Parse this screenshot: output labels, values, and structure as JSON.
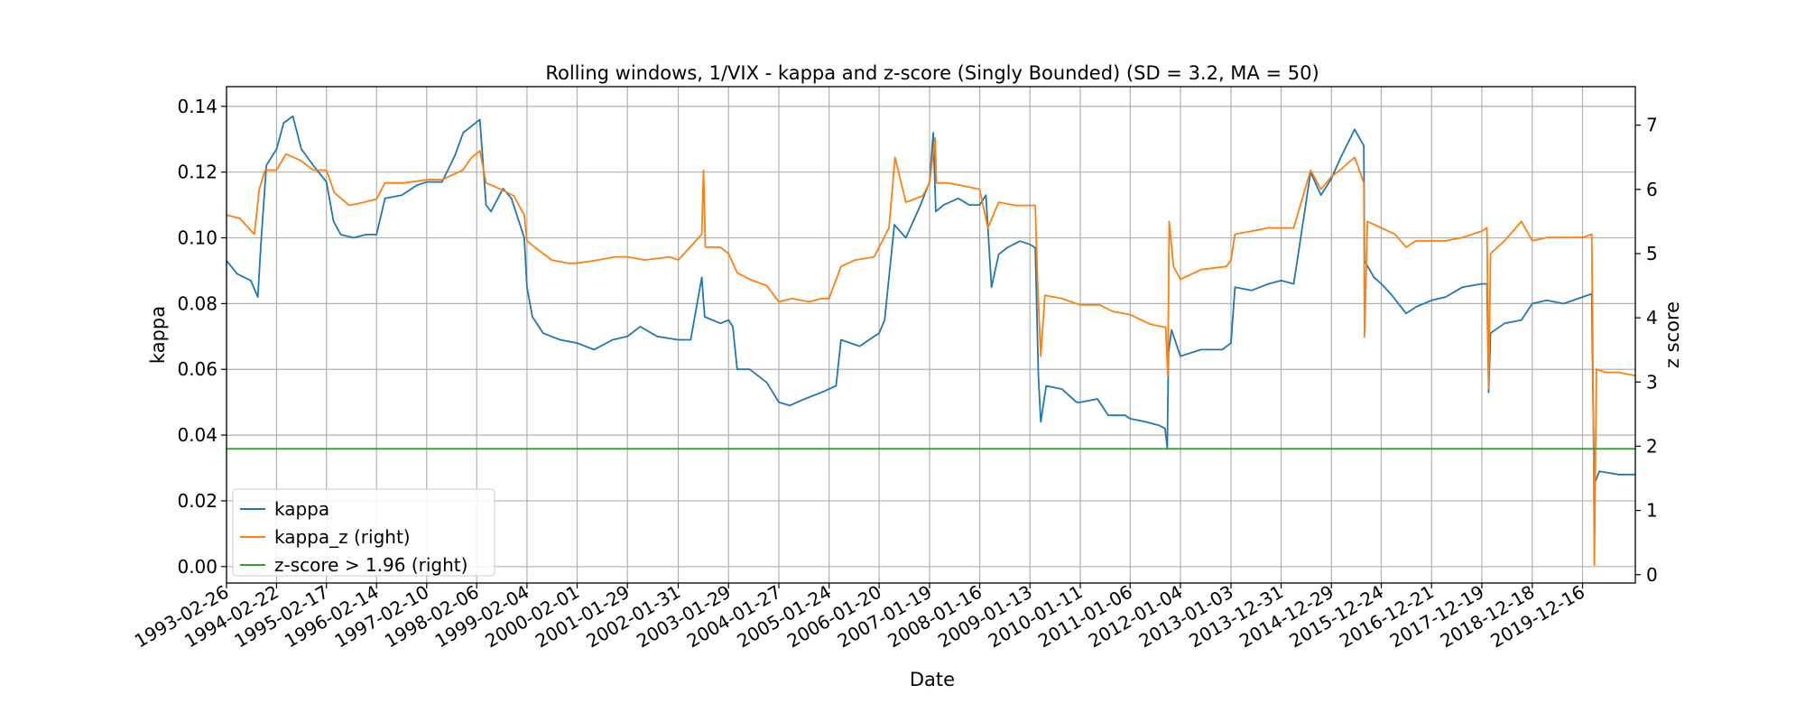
{
  "chart_data": {
    "type": "line",
    "title": "Rolling windows, 1/VIX - kappa and z-score (Singly Bounded) (SD = 3.2, MA = 50)",
    "xlabel": "Date",
    "ylabel": "kappa",
    "y2label": "z score",
    "ylim": [
      -0.005,
      0.146
    ],
    "y2lim": [
      -0.13,
      7.6
    ],
    "yticks": [
      "0.00",
      "0.02",
      "0.04",
      "0.06",
      "0.08",
      "0.10",
      "0.12",
      "0.14"
    ],
    "y2ticks": [
      "0",
      "1",
      "2",
      "3",
      "4",
      "5",
      "6",
      "7"
    ],
    "xlim": [
      "1993-02-26",
      "2020-12-31"
    ],
    "xticks": [
      "1993-02-26",
      "1994-02-22",
      "1995-02-17",
      "1996-02-14",
      "1997-02-10",
      "1998-02-06",
      "1999-02-04",
      "2000-02-01",
      "2001-01-29",
      "2002-01-31",
      "2003-01-29",
      "2004-01-27",
      "2005-01-24",
      "2006-01-20",
      "2007-01-19",
      "2008-01-16",
      "2009-01-13",
      "2010-01-11",
      "2011-01-06",
      "2012-01-04",
      "2013-01-03",
      "2013-12-31",
      "2014-12-29",
      "2015-12-24",
      "2016-12-21",
      "2017-12-19",
      "2018-12-18",
      "2019-12-16"
    ],
    "grid": true,
    "legend_position": "lower-left",
    "legend": [
      "kappa",
      "kappa_z (right)",
      "z-score > 1.96 (right)"
    ],
    "series": [
      {
        "name": "kappa",
        "axis": "left",
        "color": "#1f77b4",
        "points": [
          [
            "1993-02-26",
            0.093
          ],
          [
            "1993-05-15",
            0.089
          ],
          [
            "1993-08-20",
            0.087
          ],
          [
            "1993-10-10",
            0.082
          ],
          [
            "1993-11-01",
            0.098
          ],
          [
            "1993-12-10",
            0.122
          ],
          [
            "1994-02-22",
            0.127
          ],
          [
            "1994-04-15",
            0.135
          ],
          [
            "1994-06-20",
            0.137
          ],
          [
            "1994-08-20",
            0.127
          ],
          [
            "1994-11-15",
            0.122
          ],
          [
            "1995-02-17",
            0.117
          ],
          [
            "1995-04-10",
            0.105
          ],
          [
            "1995-06-01",
            0.101
          ],
          [
            "1995-09-01",
            0.1
          ],
          [
            "1995-12-01",
            0.101
          ],
          [
            "1996-02-14",
            0.101
          ],
          [
            "1996-04-15",
            0.112
          ],
          [
            "1996-08-15",
            0.113
          ],
          [
            "1996-12-01",
            0.116
          ],
          [
            "1997-02-10",
            0.117
          ],
          [
            "1997-06-01",
            0.117
          ],
          [
            "1997-09-01",
            0.125
          ],
          [
            "1997-11-01",
            0.132
          ],
          [
            "1998-01-01",
            0.134
          ],
          [
            "1998-03-01",
            0.136
          ],
          [
            "1998-04-15",
            0.11
          ],
          [
            "1998-05-20",
            0.108
          ],
          [
            "1998-08-15",
            0.115
          ],
          [
            "1998-10-15",
            0.112
          ],
          [
            "1999-01-15",
            0.1
          ],
          [
            "1999-02-04",
            0.085
          ],
          [
            "1999-03-15",
            0.076
          ],
          [
            "1999-06-01",
            0.071
          ],
          [
            "1999-10-01",
            0.069
          ],
          [
            "2000-02-01",
            0.068
          ],
          [
            "2000-06-01",
            0.066
          ],
          [
            "2000-10-15",
            0.069
          ],
          [
            "2001-01-29",
            0.07
          ],
          [
            "2001-05-01",
            0.073
          ],
          [
            "2001-09-01",
            0.07
          ],
          [
            "2002-01-31",
            0.069
          ],
          [
            "2002-05-01",
            0.069
          ],
          [
            "2002-07-20",
            0.088
          ],
          [
            "2002-08-10",
            0.076
          ],
          [
            "2002-12-01",
            0.074
          ],
          [
            "2003-01-29",
            0.075
          ],
          [
            "2003-03-01",
            0.073
          ],
          [
            "2003-04-01",
            0.06
          ],
          [
            "2003-07-01",
            0.06
          ],
          [
            "2003-11-01",
            0.056
          ],
          [
            "2004-01-27",
            0.05
          ],
          [
            "2004-04-15",
            0.049
          ],
          [
            "2004-08-01",
            0.051
          ],
          [
            "2004-12-01",
            0.053
          ],
          [
            "2005-01-24",
            0.054
          ],
          [
            "2005-03-15",
            0.055
          ],
          [
            "2005-04-20",
            0.069
          ],
          [
            "2005-09-01",
            0.067
          ],
          [
            "2005-12-15",
            0.07
          ],
          [
            "2006-01-20",
            0.071
          ],
          [
            "2006-03-01",
            0.075
          ],
          [
            "2006-05-10",
            0.104
          ],
          [
            "2006-08-01",
            0.1
          ],
          [
            "2006-11-15",
            0.11
          ],
          [
            "2007-01-19",
            0.117
          ],
          [
            "2007-02-15",
            0.132
          ],
          [
            "2007-03-05",
            0.108
          ],
          [
            "2007-05-01",
            0.11
          ],
          [
            "2007-08-15",
            0.112
          ],
          [
            "2007-11-01",
            0.11
          ],
          [
            "2008-01-16",
            0.11
          ],
          [
            "2008-03-01",
            0.113
          ],
          [
            "2008-04-10",
            0.085
          ],
          [
            "2008-06-01",
            0.095
          ],
          [
            "2008-08-01",
            0.097
          ],
          [
            "2008-11-01",
            0.099
          ],
          [
            "2009-01-13",
            0.098
          ],
          [
            "2009-02-20",
            0.097
          ],
          [
            "2009-03-15",
            0.058
          ],
          [
            "2009-04-01",
            0.044
          ],
          [
            "2009-05-10",
            0.055
          ],
          [
            "2009-09-01",
            0.054
          ],
          [
            "2009-12-15",
            0.05
          ],
          [
            "2010-01-11",
            0.05
          ],
          [
            "2010-05-15",
            0.051
          ],
          [
            "2010-08-01",
            0.046
          ],
          [
            "2010-12-01",
            0.046
          ],
          [
            "2011-01-06",
            0.045
          ],
          [
            "2011-05-01",
            0.044
          ],
          [
            "2011-08-01",
            0.043
          ],
          [
            "2011-09-15",
            0.042
          ],
          [
            "2011-10-01",
            0.036
          ],
          [
            "2011-10-10",
            0.065
          ],
          [
            "2011-11-01",
            0.072
          ],
          [
            "2012-01-04",
            0.064
          ],
          [
            "2012-06-01",
            0.066
          ],
          [
            "2012-11-01",
            0.066
          ],
          [
            "2013-01-03",
            0.068
          ],
          [
            "2013-02-01",
            0.085
          ],
          [
            "2013-06-01",
            0.084
          ],
          [
            "2013-10-01",
            0.086
          ],
          [
            "2013-12-31",
            0.087
          ],
          [
            "2014-04-01",
            0.086
          ],
          [
            "2014-08-01",
            0.12
          ],
          [
            "2014-10-15",
            0.113
          ],
          [
            "2014-12-29",
            0.118
          ],
          [
            "2015-03-01",
            0.124
          ],
          [
            "2015-06-15",
            0.133
          ],
          [
            "2015-08-20",
            0.128
          ],
          [
            "2015-08-25",
            0.093
          ],
          [
            "2015-11-01",
            0.088
          ],
          [
            "2015-12-24",
            0.086
          ],
          [
            "2016-03-01",
            0.083
          ],
          [
            "2016-06-20",
            0.077
          ],
          [
            "2016-09-01",
            0.079
          ],
          [
            "2016-12-21",
            0.081
          ],
          [
            "2017-04-01",
            0.082
          ],
          [
            "2017-08-01",
            0.085
          ],
          [
            "2017-12-19",
            0.086
          ],
          [
            "2018-01-25",
            0.086
          ],
          [
            "2018-02-06",
            0.053
          ],
          [
            "2018-02-20",
            0.071
          ],
          [
            "2018-06-01",
            0.074
          ],
          [
            "2018-10-01",
            0.075
          ],
          [
            "2018-12-18",
            0.08
          ],
          [
            "2019-04-01",
            0.081
          ],
          [
            "2019-08-01",
            0.08
          ],
          [
            "2019-12-16",
            0.082
          ],
          [
            "2020-02-20",
            0.083
          ],
          [
            "2020-02-28",
            0.056
          ],
          [
            "2020-03-10",
            0.025
          ],
          [
            "2020-04-15",
            0.029
          ],
          [
            "2020-09-01",
            0.028
          ],
          [
            "2020-12-31",
            0.028
          ]
        ]
      },
      {
        "name": "kappa_z (right)",
        "axis": "right",
        "color": "#ff7f0e",
        "points": [
          [
            "1993-02-26",
            5.6
          ],
          [
            "1993-06-01",
            5.55
          ],
          [
            "1993-09-15",
            5.3
          ],
          [
            "1993-10-20",
            6.0
          ],
          [
            "1993-12-01",
            6.3
          ],
          [
            "1994-02-22",
            6.3
          ],
          [
            "1994-05-01",
            6.55
          ],
          [
            "1994-08-15",
            6.45
          ],
          [
            "1994-11-15",
            6.3
          ],
          [
            "1995-02-17",
            6.3
          ],
          [
            "1995-04-15",
            5.95
          ],
          [
            "1995-08-01",
            5.75
          ],
          [
            "1995-11-15",
            5.8
          ],
          [
            "1996-02-14",
            5.85
          ],
          [
            "1996-04-15",
            6.1
          ],
          [
            "1996-09-01",
            6.1
          ],
          [
            "1997-02-10",
            6.15
          ],
          [
            "1997-06-01",
            6.15
          ],
          [
            "1997-10-28",
            6.3
          ],
          [
            "1998-01-01",
            6.5
          ],
          [
            "1998-03-01",
            6.6
          ],
          [
            "1998-04-15",
            6.1
          ],
          [
            "1998-08-01",
            6.0
          ],
          [
            "1998-11-01",
            5.9
          ],
          [
            "1999-01-15",
            5.6
          ],
          [
            "1999-02-04",
            5.2
          ],
          [
            "1999-04-01",
            5.1
          ],
          [
            "1999-08-01",
            4.9
          ],
          [
            "1999-12-01",
            4.85
          ],
          [
            "2000-02-01",
            4.85
          ],
          [
            "2000-07-01",
            4.9
          ],
          [
            "2000-11-01",
            4.95
          ],
          [
            "2001-01-29",
            4.95
          ],
          [
            "2001-06-01",
            4.9
          ],
          [
            "2001-12-01",
            4.95
          ],
          [
            "2002-01-31",
            4.9
          ],
          [
            "2002-07-20",
            5.3
          ],
          [
            "2002-08-01",
            6.3
          ],
          [
            "2002-08-15",
            5.1
          ],
          [
            "2002-12-01",
            5.1
          ],
          [
            "2003-01-29",
            5.0
          ],
          [
            "2003-04-01",
            4.7
          ],
          [
            "2003-07-01",
            4.6
          ],
          [
            "2003-11-01",
            4.5
          ],
          [
            "2004-01-27",
            4.25
          ],
          [
            "2004-05-01",
            4.3
          ],
          [
            "2004-09-01",
            4.25
          ],
          [
            "2004-12-01",
            4.3
          ],
          [
            "2005-01-24",
            4.3
          ],
          [
            "2005-04-20",
            4.8
          ],
          [
            "2005-08-01",
            4.9
          ],
          [
            "2005-12-15",
            4.95
          ],
          [
            "2006-01-20",
            5.1
          ],
          [
            "2006-04-01",
            5.4
          ],
          [
            "2006-05-15",
            6.5
          ],
          [
            "2006-08-01",
            5.8
          ],
          [
            "2006-12-01",
            5.9
          ],
          [
            "2007-01-19",
            6.1
          ],
          [
            "2007-02-28",
            6.8
          ],
          [
            "2007-03-10",
            6.1
          ],
          [
            "2007-06-01",
            6.1
          ],
          [
            "2007-10-01",
            6.05
          ],
          [
            "2008-01-16",
            6.0
          ],
          [
            "2008-03-15",
            5.4
          ],
          [
            "2008-06-01",
            5.8
          ],
          [
            "2008-10-01",
            5.75
          ],
          [
            "2009-01-13",
            5.75
          ],
          [
            "2009-02-20",
            5.75
          ],
          [
            "2009-03-10",
            4.5
          ],
          [
            "2009-04-01",
            3.4
          ],
          [
            "2009-05-01",
            4.35
          ],
          [
            "2009-09-01",
            4.3
          ],
          [
            "2010-01-11",
            4.2
          ],
          [
            "2010-06-01",
            4.2
          ],
          [
            "2010-09-01",
            4.1
          ],
          [
            "2011-01-06",
            4.05
          ],
          [
            "2011-06-01",
            3.9
          ],
          [
            "2011-09-20",
            3.85
          ],
          [
            "2011-10-05",
            3.1
          ],
          [
            "2011-10-15",
            5.5
          ],
          [
            "2011-11-15",
            4.8
          ],
          [
            "2012-01-04",
            4.6
          ],
          [
            "2012-06-01",
            4.75
          ],
          [
            "2012-12-01",
            4.8
          ],
          [
            "2013-01-03",
            4.9
          ],
          [
            "2013-02-01",
            5.3
          ],
          [
            "2013-06-01",
            5.35
          ],
          [
            "2013-10-01",
            5.4
          ],
          [
            "2013-12-31",
            5.4
          ],
          [
            "2014-04-01",
            5.4
          ],
          [
            "2014-08-01",
            6.3
          ],
          [
            "2014-10-15",
            6.0
          ],
          [
            "2014-12-29",
            6.2
          ],
          [
            "2015-03-01",
            6.3
          ],
          [
            "2015-06-15",
            6.5
          ],
          [
            "2015-08-20",
            6.1
          ],
          [
            "2015-08-25",
            3.7
          ],
          [
            "2015-09-15",
            5.5
          ],
          [
            "2015-12-24",
            5.4
          ],
          [
            "2016-04-01",
            5.3
          ],
          [
            "2016-06-20",
            5.1
          ],
          [
            "2016-09-01",
            5.2
          ],
          [
            "2016-12-21",
            5.2
          ],
          [
            "2017-04-01",
            5.2
          ],
          [
            "2017-08-01",
            5.25
          ],
          [
            "2017-12-19",
            5.35
          ],
          [
            "2018-01-25",
            5.4
          ],
          [
            "2018-02-06",
            2.9
          ],
          [
            "2018-02-20",
            5.0
          ],
          [
            "2018-06-01",
            5.2
          ],
          [
            "2018-10-01",
            5.5
          ],
          [
            "2018-12-18",
            5.2
          ],
          [
            "2019-04-01",
            5.25
          ],
          [
            "2019-08-01",
            5.25
          ],
          [
            "2019-12-16",
            5.25
          ],
          [
            "2020-02-20",
            5.3
          ],
          [
            "2020-02-28",
            3.5
          ],
          [
            "2020-03-10",
            0.15
          ],
          [
            "2020-03-25",
            3.2
          ],
          [
            "2020-06-01",
            3.15
          ],
          [
            "2020-09-01",
            3.15
          ],
          [
            "2020-12-31",
            3.1
          ]
        ]
      },
      {
        "name": "z-score > 1.96 (right)",
        "axis": "right",
        "color": "#2ca02c",
        "constant": 1.96
      }
    ]
  }
}
